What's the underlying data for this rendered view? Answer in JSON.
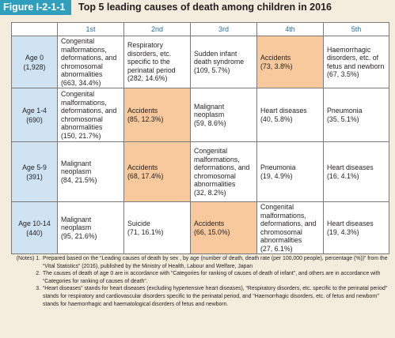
{
  "header": {
    "figure_label": "Figure  I-2-1-1",
    "title": "Top 5 leading causes of death among children in 2016"
  },
  "table": {
    "columns": [
      "",
      "1st",
      "2nd",
      "3rd",
      "4th",
      "5th"
    ],
    "rows": [
      {
        "age": "Age 0",
        "count": "(1,928)",
        "cells": [
          {
            "cause": "Congenital malformations, deformations, and chromosomal abnormalities",
            "stat": "(663, 34.4%)"
          },
          {
            "cause": "Respiratory disorders, etc. specific to the perinatal period",
            "stat": "(282, 14.6%)"
          },
          {
            "cause": "Sudden infant death syndrome",
            "stat": "(109, 5.7%)"
          },
          {
            "cause": "Accidents",
            "stat": "(73, 3.8%)"
          },
          {
            "cause": "Haemorrhagic disorders, etc. of fetus and newborn",
            "stat": "(67, 3.5%)"
          }
        ]
      },
      {
        "age": "Age 1-4",
        "count": "(690)",
        "cells": [
          {
            "cause": "Congenital malformations, deformations, and chromosomal abnormalities",
            "stat": "(150, 21.7%)"
          },
          {
            "cause": "Accidents",
            "stat": "(85, 12.3%)"
          },
          {
            "cause": "Malignant neoplasm",
            "stat": "(59, 8.6%)"
          },
          {
            "cause": "Heart diseases",
            "stat": "(40, 5.8%)"
          },
          {
            "cause": "Pneumonia",
            "stat": "(35, 5.1%)"
          }
        ]
      },
      {
        "age": "Age 5-9",
        "count": "(391)",
        "cells": [
          {
            "cause": "Malignant neoplasm",
            "stat": "(84, 21.5%)"
          },
          {
            "cause": "Accidents",
            "stat": "(68, 17.4%)"
          },
          {
            "cause": "Congenital malformations, deformations, and chromosomal abnormalities",
            "stat": "(32, 8.2%)"
          },
          {
            "cause": "Pneumonia",
            "stat": "(19, 4.9%)"
          },
          {
            "cause": "Heart diseases",
            "stat": "(16, 4.1%)"
          }
        ]
      },
      {
        "age": "Age 10-14",
        "count": "(440)",
        "cells": [
          {
            "cause": "Malignant neoplasm",
            "stat": "(95, 21.6%)"
          },
          {
            "cause": "Suicide",
            "stat": "(71, 16.1%)"
          },
          {
            "cause": "Accidents",
            "stat": "(66, 15.0%)"
          },
          {
            "cause": "Congenital malformations, deformations, and chromosomal abnormalities",
            "stat": "(27, 6.1%)"
          },
          {
            "cause": "Heart diseases",
            "stat": "(19, 4.3%)"
          }
        ]
      }
    ]
  },
  "notes": [
    {
      "prefix": "(Notes) 1.",
      "text": "Prepared based on the “Leading causes of death by sex , by age (number of death, death rate (per 100,000 people), percentage (%))” from the “Vital Statistics” (2016), published by the Ministry of Health, Labour and Welfare, Japan"
    },
    {
      "prefix": "2.",
      "text": "The causes of death of age 0 are in accordance with “Categories for ranking of causes of death of infant”, and others are in accordance with “Categories for ranking of causes of death”."
    },
    {
      "prefix": "3.",
      "text": "“Heart diseases” stands for heart diseases (excluding hypertensive heart diseases), “Respiratory disorders, etc. specific to the perinatal period” stands for respiratory and cardiovascular disorders specific to the perinatal period, and “Haemorrhagic disorders, etc. of fetus and newborn” stands for haemorrhagic and haematological disorders of fetus and newborn."
    }
  ],
  "colors": {
    "label_bg": "#2f9fbd",
    "page_bg": "#f4ecdd",
    "age_bg": "#cfe3f3",
    "highlight_bg": "#f8c99d",
    "header_text": "#2a6f9d"
  }
}
